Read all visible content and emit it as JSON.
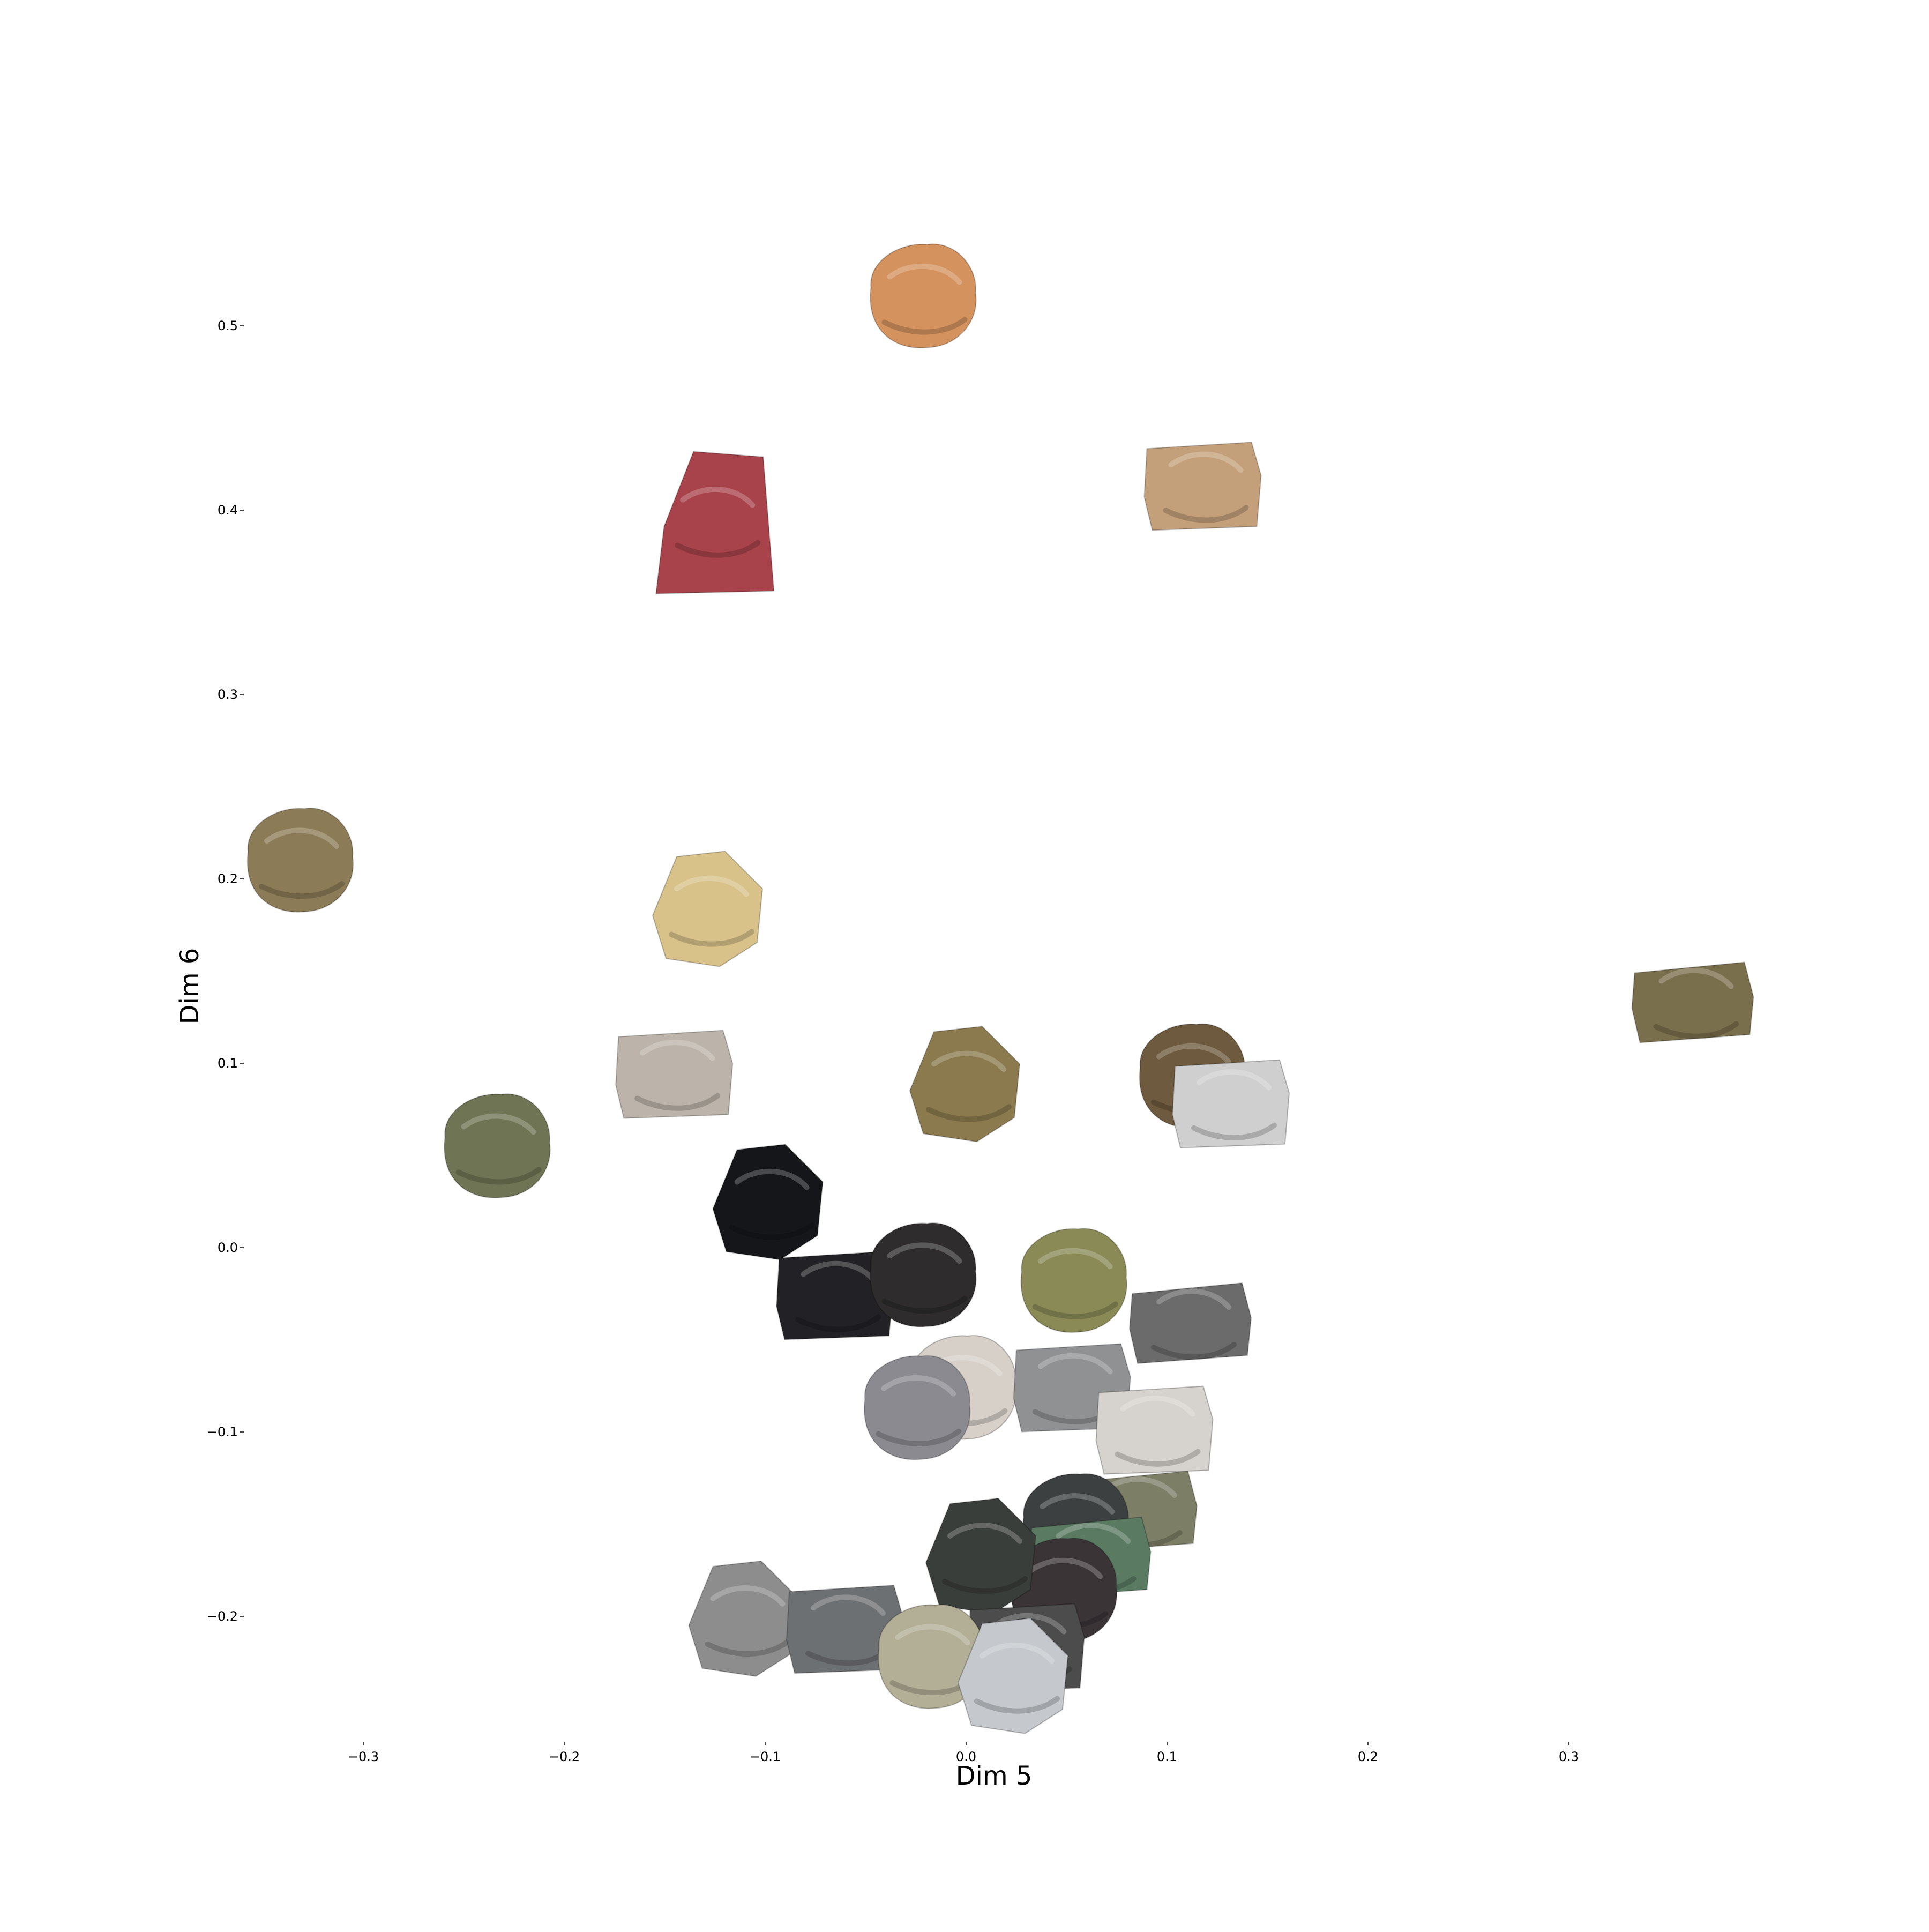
{
  "chart_data": {
    "type": "scatter",
    "title": "",
    "xlabel": "Dim 5",
    "ylabel": "Dim 6",
    "xlim": [
      -0.37,
      0.42
    ],
    "ylim": [
      -0.27,
      0.56
    ],
    "x_ticks": [
      -0.3,
      -0.2,
      -0.1,
      0.0,
      0.1,
      0.2,
      0.3
    ],
    "x_tick_labels": [
      "−0.3",
      "−0.2",
      "−0.1",
      "0.0",
      "0.1",
      "0.2",
      "0.3"
    ],
    "y_ticks": [
      0.5,
      0.4,
      0.3,
      0.2,
      0.1,
      0.0,
      -0.1,
      -0.2
    ],
    "y_tick_labels": [
      "0.5",
      "0.4",
      "0.3",
      "0.2",
      "0.1",
      "0.0",
      "−0.1",
      "−0.2"
    ],
    "grid": false,
    "marker": "rock-specimen-image",
    "points": [
      {
        "x": -0.022,
        "y": 0.515,
        "color": "#d4935e",
        "shape": "lumpy"
      },
      {
        "x": 0.118,
        "y": 0.413,
        "color": "#c4a07a",
        "shape": "slab"
      },
      {
        "x": -0.125,
        "y": 0.394,
        "color": "#a8434b",
        "shape": "breccia"
      },
      {
        "x": -0.332,
        "y": 0.209,
        "color": "#8c7b57",
        "shape": "lumpy"
      },
      {
        "x": -0.128,
        "y": 0.183,
        "color": "#d8c28a",
        "shape": "shard"
      },
      {
        "x": 0.362,
        "y": 0.133,
        "color": "#7a6f4c",
        "shape": "banded"
      },
      {
        "x": -0.145,
        "y": 0.094,
        "color": "#bcb4aa",
        "shape": "slab"
      },
      {
        "x": 0.0,
        "y": 0.088,
        "color": "#8a7a4e",
        "shape": "shard"
      },
      {
        "x": 0.112,
        "y": 0.092,
        "color": "#6e5a3e",
        "shape": "lumpy"
      },
      {
        "x": 0.132,
        "y": 0.078,
        "color": "#cfcfcf",
        "shape": "slab"
      },
      {
        "x": -0.234,
        "y": 0.054,
        "color": "#6f7454",
        "shape": "lumpy"
      },
      {
        "x": -0.098,
        "y": 0.024,
        "color": "#14161a",
        "shape": "shard"
      },
      {
        "x": -0.065,
        "y": -0.026,
        "color": "#222226",
        "shape": "slab"
      },
      {
        "x": -0.022,
        "y": -0.016,
        "color": "#2e2c2c",
        "shape": "lumpy"
      },
      {
        "x": 0.053,
        "y": -0.019,
        "color": "#8a8a57",
        "shape": "lumpy"
      },
      {
        "x": 0.112,
        "y": -0.041,
        "color": "#6b6b6b",
        "shape": "banded"
      },
      {
        "x": -0.002,
        "y": -0.077,
        "color": "#d7d0c8",
        "shape": "lumpy"
      },
      {
        "x": 0.053,
        "y": -0.076,
        "color": "#8f9193",
        "shape": "slab"
      },
      {
        "x": -0.025,
        "y": -0.088,
        "color": "#8a8a90",
        "shape": "lumpy"
      },
      {
        "x": 0.094,
        "y": -0.099,
        "color": "#d6d2cd",
        "shape": "slab"
      },
      {
        "x": 0.085,
        "y": -0.143,
        "color": "#7c7e66",
        "shape": "banded"
      },
      {
        "x": 0.054,
        "y": -0.152,
        "color": "#3c4040",
        "shape": "lumpy"
      },
      {
        "x": 0.062,
        "y": -0.168,
        "color": "#5a7a62",
        "shape": "banded"
      },
      {
        "x": 0.048,
        "y": -0.187,
        "color": "#3a3437",
        "shape": "lumpy"
      },
      {
        "x": 0.008,
        "y": -0.168,
        "color": "#3a3e3a",
        "shape": "shard"
      },
      {
        "x": -0.11,
        "y": -0.202,
        "color": "#8d8d8d",
        "shape": "shard"
      },
      {
        "x": -0.06,
        "y": -0.207,
        "color": "#6d7073",
        "shape": "slab"
      },
      {
        "x": 0.03,
        "y": -0.217,
        "color": "#4c4c4c",
        "shape": "slab"
      },
      {
        "x": -0.018,
        "y": -0.223,
        "color": "#b3ae96",
        "shape": "lumpy"
      },
      {
        "x": 0.024,
        "y": -0.233,
        "color": "#c5c8cc",
        "shape": "shard"
      }
    ]
  }
}
